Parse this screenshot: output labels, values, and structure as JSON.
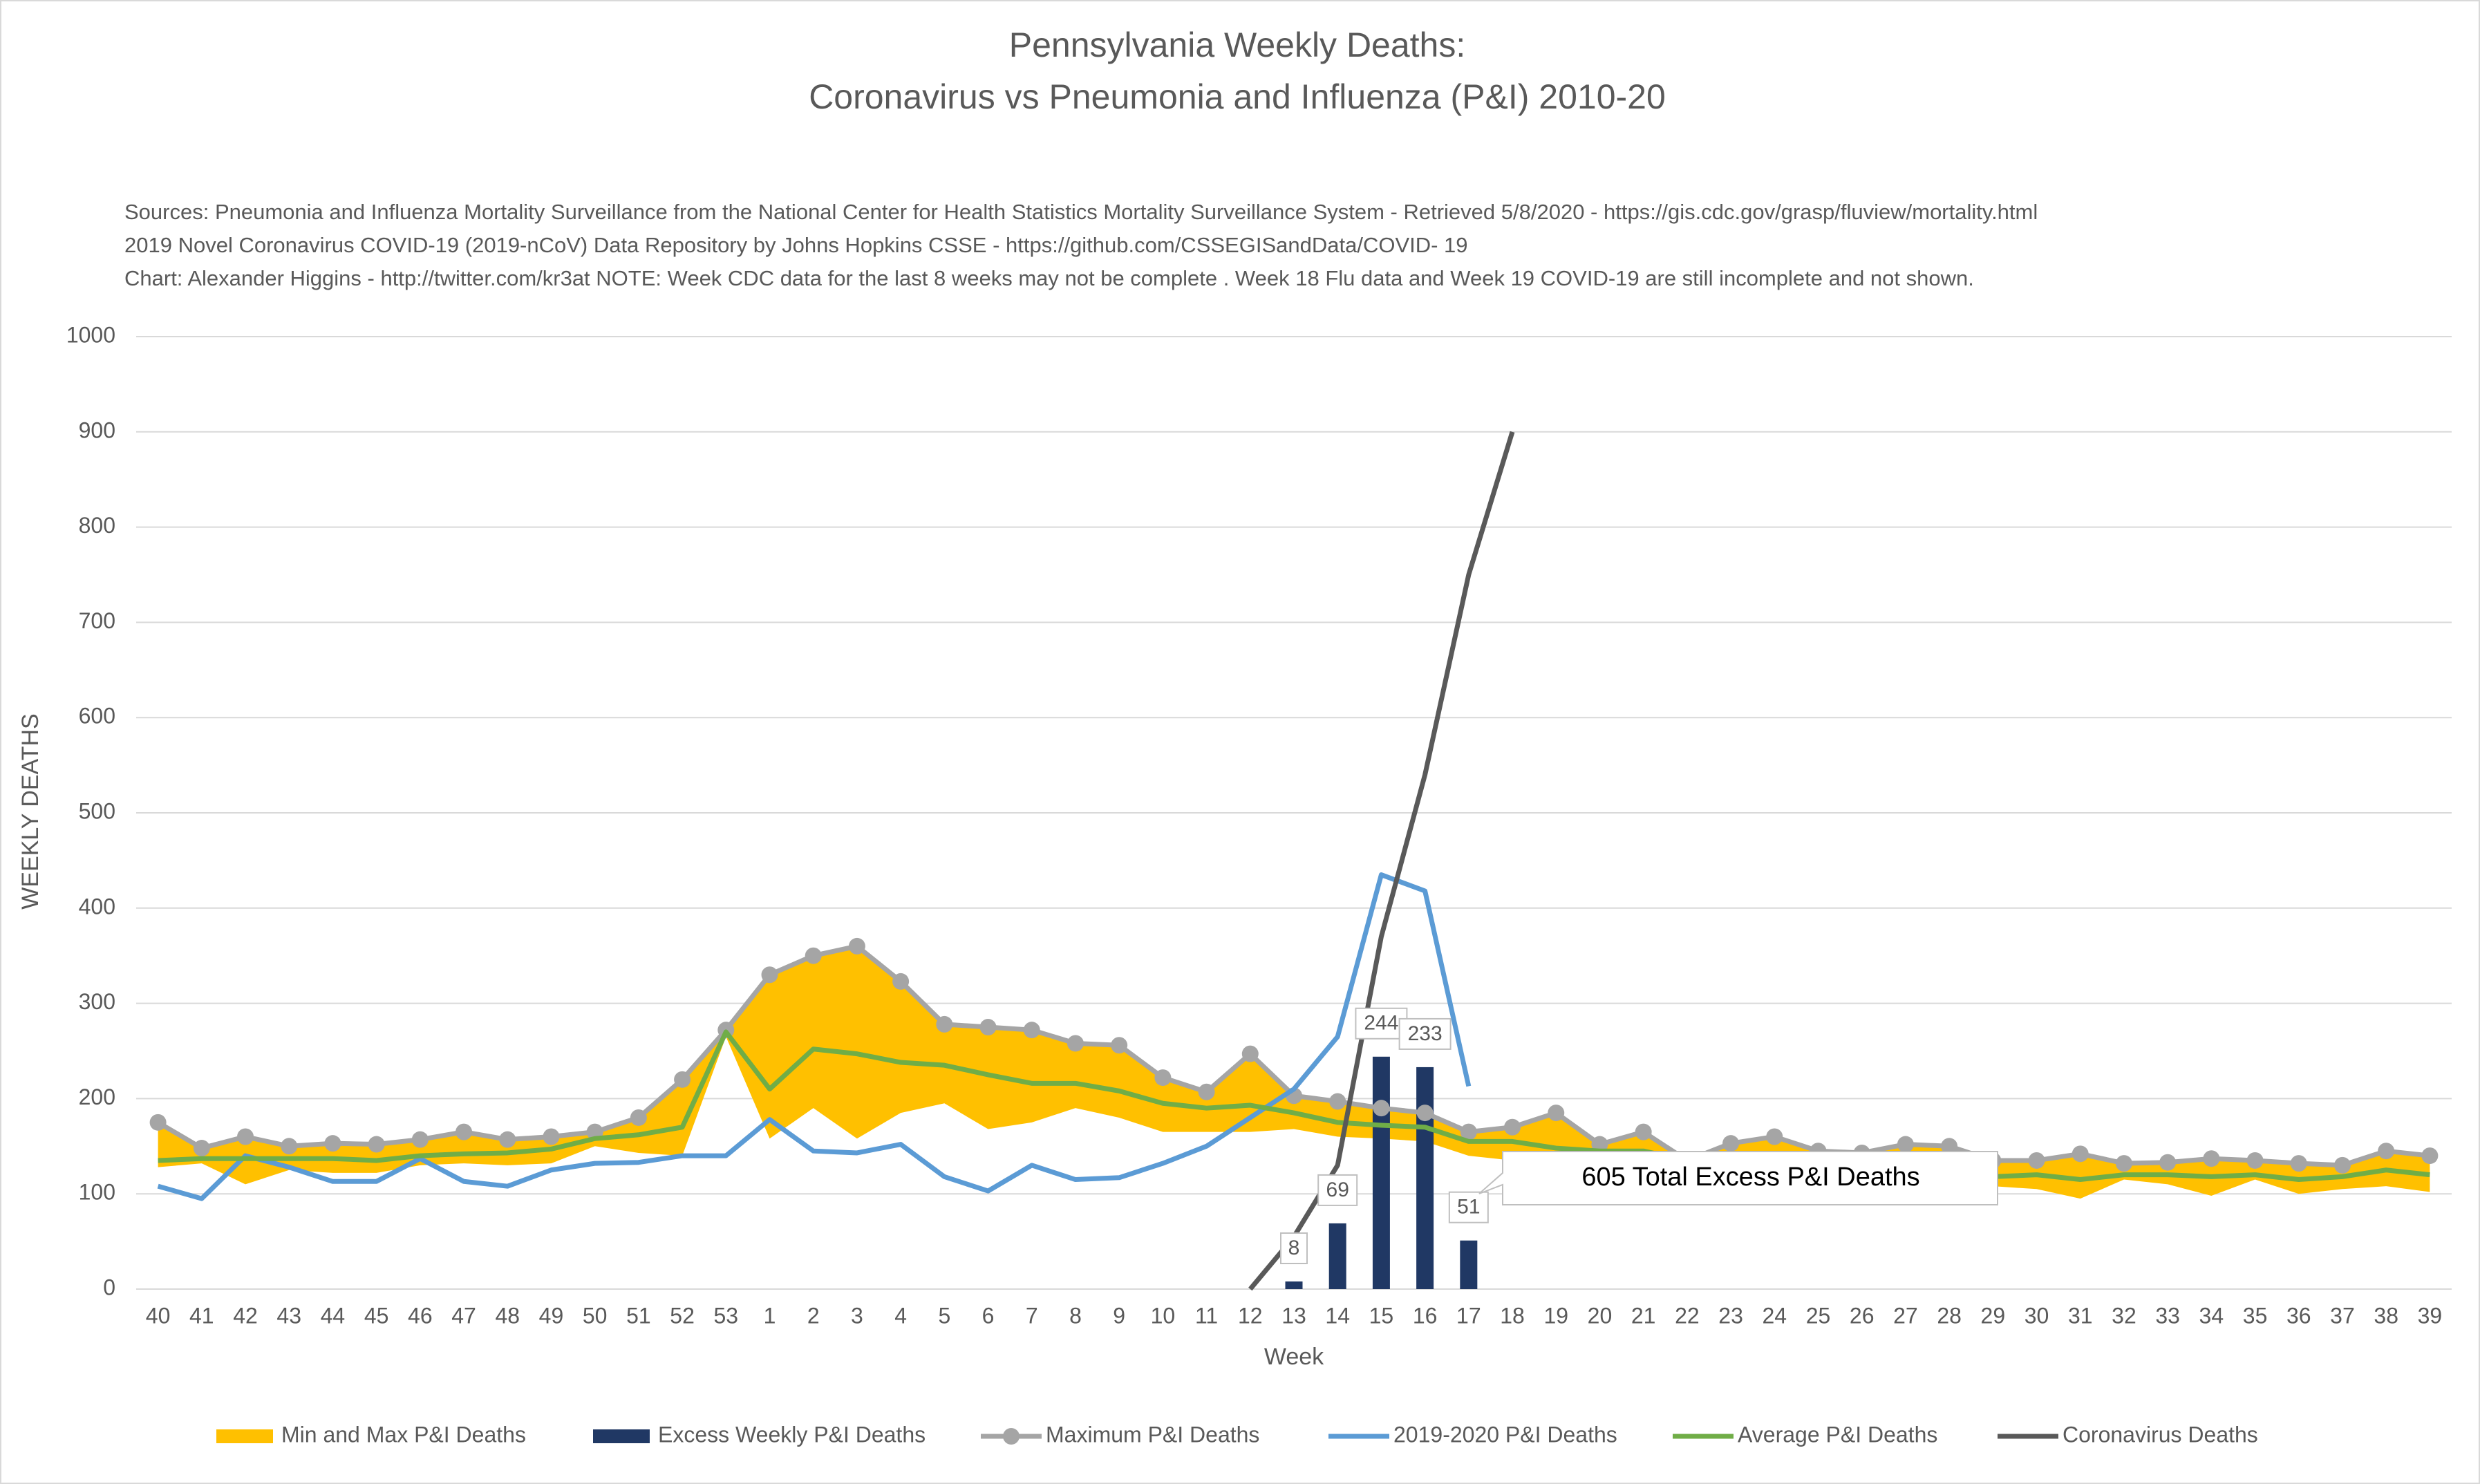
{
  "chart_data": {
    "type": "line",
    "title": [
      "Pennsylvania Weekly Deaths:",
      "Coronavirus vs Pneumonia and Influenza (P&I) 2010-20"
    ],
    "sources": [
      "Sources: Pneumonia and Influenza Mortality Surveillance from the National Center for Health Statistics Mortality Surveillance System - Retrieved 5/8/2020 - https://gis.cdc.gov/grasp/fluview/mortality.html",
      "2019 Novel Coronavirus COVID-19 (2019-nCoV) Data Repository by Johns Hopkins CSSE - https://github.com/CSSEGISandData/COVID- 19",
      "Chart: Alexander Higgins - http://twitter.com/kr3at   NOTE: Week CDC data for the last 8 weeks may not be complete . Week 18 Flu data and Week 19 COVID-19 are still incomplete and not shown."
    ],
    "x_label": "Week",
    "y_label": "WEEKLY DEATHS",
    "annotation": "605 Total Excess P&I Deaths",
    "categories": [
      "40",
      "41",
      "42",
      "43",
      "44",
      "45",
      "46",
      "47",
      "48",
      "49",
      "50",
      "51",
      "52",
      "53",
      "1",
      "2",
      "3",
      "4",
      "5",
      "6",
      "7",
      "8",
      "9",
      "10",
      "11",
      "12",
      "13",
      "14",
      "15",
      "16",
      "17",
      "18",
      "19",
      "20",
      "21",
      "22",
      "23",
      "24",
      "25",
      "26",
      "27",
      "28",
      "29",
      "30",
      "31",
      "32",
      "33",
      "34",
      "35",
      "36",
      "37",
      "38",
      "39"
    ],
    "ylim": [
      0,
      1000
    ],
    "yticks": [
      0,
      100,
      200,
      300,
      400,
      500,
      600,
      700,
      800,
      900,
      1000
    ],
    "grid": true,
    "legend": "bottom",
    "series": [
      {
        "name": "Min and Max P&I Deaths",
        "type": "band",
        "color": "#FFC000",
        "min": [
          128,
          132,
          110,
          125,
          122,
          122,
          130,
          132,
          130,
          132,
          150,
          143,
          140,
          265,
          158,
          190,
          158,
          185,
          195,
          168,
          175,
          190,
          180,
          165,
          165,
          165,
          168,
          160,
          158,
          155,
          140,
          135,
          130,
          130,
          135,
          120,
          120,
          122,
          120,
          118,
          120,
          115,
          108,
          105,
          95,
          115,
          110,
          98,
          115,
          100,
          105,
          108,
          102
        ],
        "max": [
          175,
          148,
          160,
          150,
          153,
          152,
          157,
          165,
          157,
          160,
          165,
          180,
          220,
          272,
          330,
          350,
          360,
          323,
          278,
          275,
          272,
          258,
          256,
          222,
          207,
          247,
          203,
          197,
          190,
          185,
          165,
          170,
          185,
          152,
          165,
          135,
          153,
          160,
          145,
          143,
          152,
          150,
          135,
          135,
          142,
          132,
          133,
          137,
          135,
          132,
          130,
          145,
          140
        ]
      },
      {
        "name": "Excess Weekly P&I Deaths",
        "type": "bar",
        "color": "#203864",
        "values": [
          null,
          null,
          null,
          null,
          null,
          null,
          null,
          null,
          null,
          null,
          null,
          null,
          null,
          null,
          null,
          null,
          null,
          null,
          null,
          null,
          null,
          null,
          null,
          null,
          null,
          null,
          8,
          69,
          244,
          233,
          51,
          null,
          null,
          null,
          null,
          null,
          null,
          null,
          null,
          null,
          null,
          null,
          null,
          null,
          null,
          null,
          null,
          null,
          null,
          null,
          null,
          null,
          null
        ]
      },
      {
        "name": "Maximum P&I Deaths",
        "type": "line",
        "markers": true,
        "color": "#A5A5A5",
        "values": [
          175,
          148,
          160,
          150,
          153,
          152,
          157,
          165,
          157,
          160,
          165,
          180,
          220,
          272,
          330,
          350,
          360,
          323,
          278,
          275,
          272,
          258,
          256,
          222,
          207,
          247,
          203,
          197,
          190,
          185,
          165,
          170,
          185,
          152,
          165,
          135,
          153,
          160,
          145,
          143,
          152,
          150,
          135,
          135,
          142,
          132,
          133,
          137,
          135,
          132,
          130,
          145,
          140
        ]
      },
      {
        "name": "2019-2020 P&I Deaths",
        "type": "line",
        "color": "#5B9BD5",
        "values": [
          108,
          95,
          140,
          128,
          113,
          113,
          137,
          113,
          108,
          125,
          132,
          133,
          140,
          140,
          178,
          145,
          143,
          152,
          118,
          103,
          130,
          115,
          117,
          132,
          150,
          180,
          210,
          265,
          435,
          418,
          213,
          null,
          null,
          null,
          null,
          null,
          null,
          null,
          null,
          null,
          null,
          null,
          null,
          null,
          null,
          null,
          null,
          null,
          null,
          null,
          null,
          null,
          null
        ]
      },
      {
        "name": "Average P&I Deaths",
        "type": "line",
        "color": "#70AD47",
        "values": [
          135,
          137,
          137,
          137,
          137,
          135,
          140,
          142,
          143,
          147,
          158,
          162,
          170,
          270,
          210,
          252,
          247,
          238,
          235,
          225,
          216,
          216,
          208,
          195,
          190,
          193,
          185,
          175,
          172,
          170,
          155,
          155,
          148,
          145,
          145,
          135,
          135,
          137,
          133,
          130,
          132,
          130,
          118,
          120,
          115,
          120,
          120,
          118,
          120,
          115,
          118,
          125,
          120
        ]
      },
      {
        "name": "Coronavirus Deaths",
        "type": "line",
        "color": "#595959",
        "values": [
          null,
          null,
          null,
          null,
          null,
          null,
          null,
          null,
          null,
          null,
          null,
          null,
          null,
          null,
          null,
          null,
          null,
          null,
          null,
          null,
          null,
          null,
          null,
          null,
          null,
          0,
          55,
          130,
          370,
          540,
          750,
          900,
          null,
          null,
          null,
          null,
          null,
          null,
          null,
          null,
          null,
          null,
          null,
          null,
          null,
          null,
          null,
          null,
          null,
          null,
          null,
          null,
          null
        ]
      }
    ]
  }
}
